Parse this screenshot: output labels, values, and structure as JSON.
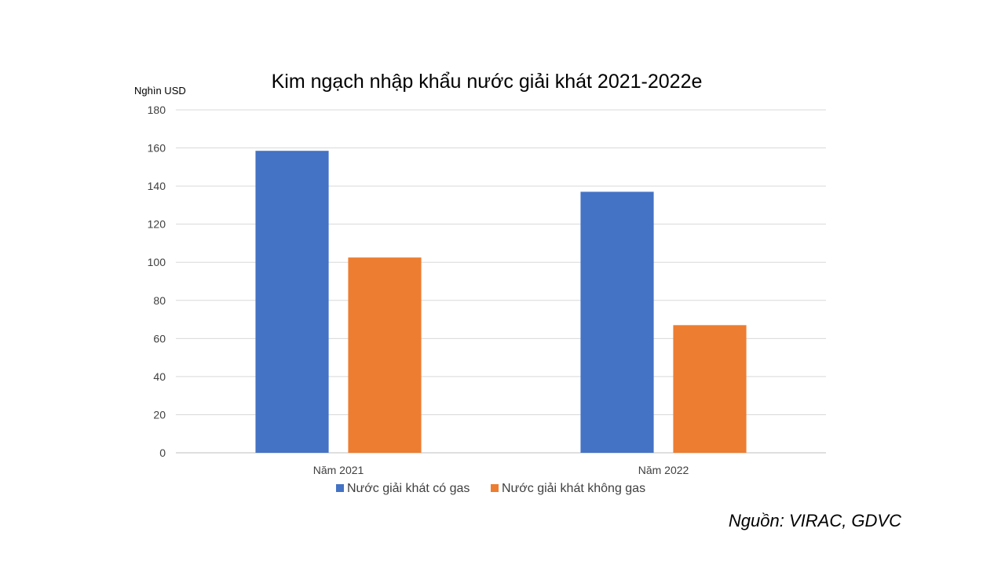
{
  "chart_data": {
    "type": "bar",
    "title": "Kim ngạch nhập khẩu nước giải khát 2021-2022e",
    "ylabel": "Nghìn USD",
    "xlabel": "",
    "categories": [
      "Năm 2021",
      "Năm 2022"
    ],
    "series": [
      {
        "name": "Nước giải khát có gas",
        "values": [
          158.5,
          137
        ],
        "color": "#4472C4"
      },
      {
        "name": "Nước giải khát không gas",
        "values": [
          102.5,
          67
        ],
        "color": "#ED7D31"
      }
    ],
    "ylim": [
      0,
      180
    ],
    "yticks": [
      "0",
      "20",
      "40",
      "60",
      "80",
      "100",
      "120",
      "140",
      "160",
      "180"
    ],
    "grid": true,
    "legend_position": "bottom"
  },
  "source": "Nguồn:  VIRAC, GDVC"
}
